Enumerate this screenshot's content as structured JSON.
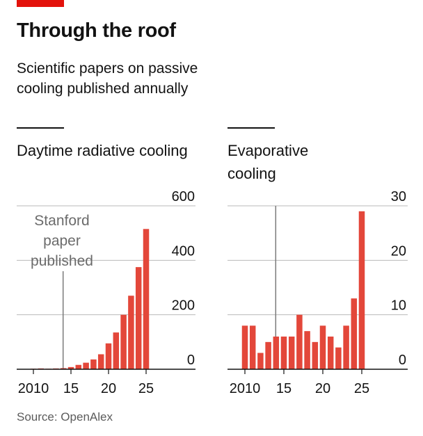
{
  "header": {
    "title": "Through the roof",
    "subtitle": "Scientific papers on passive cooling published annually"
  },
  "footer": {
    "source": "Source: OpenAlex"
  },
  "colors": {
    "bar": "#e3473a",
    "accent": "#e3120b",
    "grid": "#b8b8b8",
    "annotation": "#7a7a7a"
  },
  "chart_data": [
    {
      "type": "bar",
      "title": "Daytime radiative cooling",
      "x": [
        2010,
        2011,
        2012,
        2013,
        2014,
        2015,
        2016,
        2017,
        2018,
        2019,
        2020,
        2021,
        2022,
        2023,
        2024,
        2025
      ],
      "values": [
        2,
        3,
        2,
        3,
        4,
        8,
        16,
        24,
        36,
        55,
        95,
        135,
        200,
        270,
        375,
        515
      ],
      "ylim": [
        0,
        600
      ],
      "yticks": [
        0,
        200,
        400,
        600
      ],
      "xticks": [
        2010,
        2015,
        2020,
        2025
      ],
      "xtick_labels": [
        "2010",
        "15",
        "20",
        "25"
      ],
      "annotation": {
        "x": 2014,
        "label_lines": [
          "Stanford",
          "paper",
          "published"
        ]
      },
      "grid": true
    },
    {
      "type": "bar",
      "title": "Evaporative cooling",
      "x": [
        2010,
        2011,
        2012,
        2013,
        2014,
        2015,
        2016,
        2017,
        2018,
        2019,
        2020,
        2021,
        2022,
        2023,
        2024,
        2025
      ],
      "values": [
        8,
        8,
        3,
        5,
        6,
        6,
        6,
        10,
        7,
        5,
        8,
        6,
        4,
        8,
        13,
        29
      ],
      "ylim": [
        0,
        30
      ],
      "yticks": [
        0,
        10,
        20,
        30
      ],
      "xticks": [
        2010,
        2015,
        2020,
        2025
      ],
      "xtick_labels": [
        "2010",
        "15",
        "20",
        "25"
      ],
      "annotation": {
        "x": 2014
      },
      "grid": true
    }
  ]
}
